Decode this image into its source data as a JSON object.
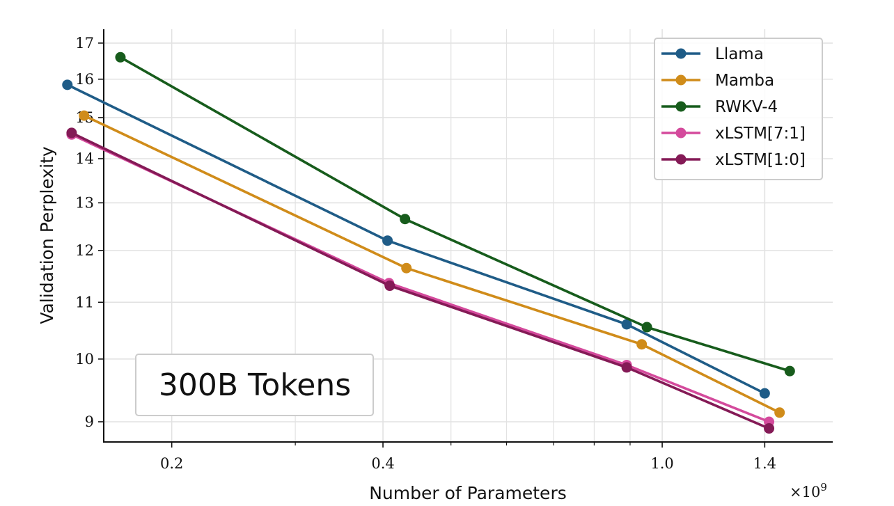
{
  "chart_data": {
    "type": "line",
    "title": "",
    "xlabel": "Number of Parameters",
    "ylabel": "Validation Perplexity",
    "x_multiplier_label": "×10",
    "x_multiplier_exp": "9",
    "xscale": "log",
    "yscale": "log",
    "xlim": [
      0.16,
      1.75
    ],
    "ylim": [
      8.7,
      17.4
    ],
    "xticks": [
      {
        "value": 0.2,
        "label": "0.2"
      },
      {
        "value": 0.4,
        "label": "0.4"
      },
      {
        "value": 1.0,
        "label": "1.0"
      },
      {
        "value": 1.4,
        "label": "1.4"
      }
    ],
    "xminor": [
      0.3,
      0.5,
      0.6,
      0.7,
      0.8,
      0.9
    ],
    "yticks": [
      9,
      10,
      11,
      12,
      13,
      14,
      15,
      16,
      17
    ],
    "grid": true,
    "legend_position": "top-right",
    "annotation": "300B Tokens",
    "series": [
      {
        "name": "Llama",
        "color": "#1f5c87",
        "x": [
          0.142,
          0.406,
          0.89,
          1.4
        ],
        "y": [
          15.85,
          12.2,
          10.6,
          9.44
        ]
      },
      {
        "name": "Mamba",
        "color": "#d08c1a",
        "x": [
          0.15,
          0.432,
          0.935,
          1.47
        ],
        "y": [
          15.05,
          11.65,
          10.25,
          9.14
        ]
      },
      {
        "name": "RWKV-4",
        "color": "#175c1c",
        "x": [
          0.169,
          0.43,
          0.951,
          1.52
        ],
        "y": [
          16.6,
          12.65,
          10.55,
          9.8
        ]
      },
      {
        "name": "xLSTM[7:1]",
        "color": "#d44a9c",
        "x": [
          0.144,
          0.408,
          0.89,
          1.42
        ],
        "y": [
          14.58,
          11.36,
          9.9,
          9.0
        ]
      },
      {
        "name": "xLSTM[1:0]",
        "color": "#841a56",
        "x": [
          0.144,
          0.409,
          0.89,
          1.42
        ],
        "y": [
          14.62,
          11.31,
          9.86,
          8.9
        ]
      }
    ]
  }
}
